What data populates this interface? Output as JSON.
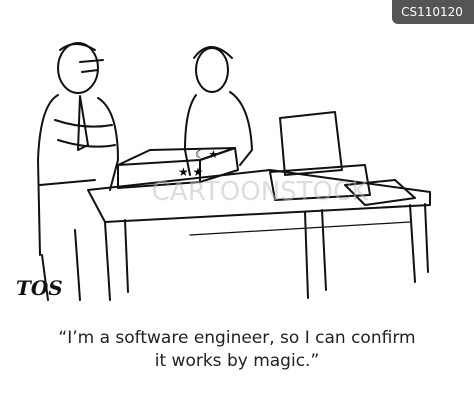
{
  "badge": "CS110120",
  "signature": "TOS",
  "watermark": "CARTOONSTOCK",
  "caption": {
    "lines": [
      "“I’m a software engineer, so I can confirm",
      "it works by magic.”"
    ]
  }
}
